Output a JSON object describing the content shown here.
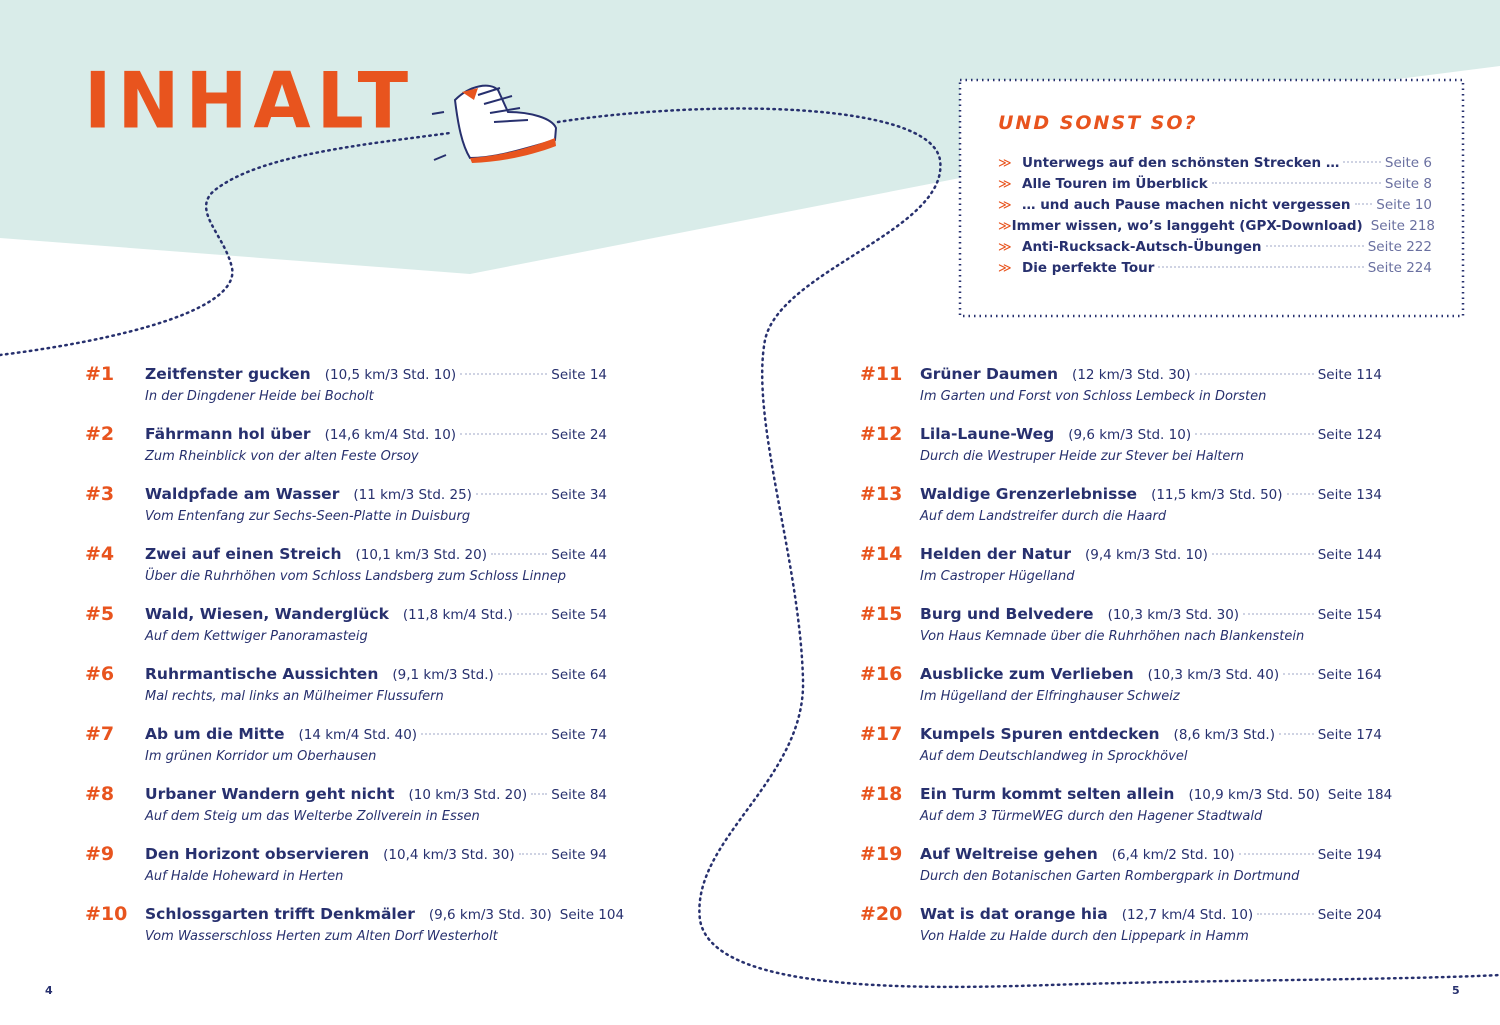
{
  "heading": "INHALT",
  "colors": {
    "accent": "#e8541e",
    "text": "#27306e",
    "background_mint": "#d9ece9"
  },
  "illustration": "hiking-boot-icon",
  "sidebox": {
    "title": "Und sonst so?",
    "items": [
      {
        "label": "Unterwegs auf den schönsten Strecken …",
        "page": "Seite 6"
      },
      {
        "label": "Alle Touren im Überblick",
        "page": "Seite 8"
      },
      {
        "label": "… und auch Pause machen nicht vergessen",
        "page": "Seite 10"
      },
      {
        "label": "Immer wissen, wo’s langgeht (GPX-Download)",
        "page": "Seite 218"
      },
      {
        "label": "Anti-Rucksack-Autsch-Übungen",
        "page": "Seite 222"
      },
      {
        "label": "Die perfekte Tour",
        "page": "Seite 224"
      }
    ]
  },
  "tours": [
    {
      "num": "#1",
      "title": "Zeitfenster gucken",
      "meta": "(10,5 km/3 Std. 10)",
      "page": "Seite 14",
      "sub": "In der Dingdener Heide bei Bocholt"
    },
    {
      "num": "#2",
      "title": "Fährmann hol über",
      "meta": "(14,6 km/4 Std. 10)",
      "page": "Seite 24",
      "sub": "Zum Rheinblick von der alten Feste Orsoy"
    },
    {
      "num": "#3",
      "title": "Waldpfade am Wasser",
      "meta": "(11 km/3 Std. 25)",
      "page": "Seite 34",
      "sub": "Vom Entenfang zur Sechs-Seen-Platte in Duisburg"
    },
    {
      "num": "#4",
      "title": "Zwei auf einen Streich",
      "meta": "(10,1 km/3 Std. 20)",
      "page": "Seite 44",
      "sub": "Über die Ruhrhöhen vom Schloss Landsberg zum Schloss Linnep"
    },
    {
      "num": "#5",
      "title": "Wald, Wiesen, Wanderglück",
      "meta": "(11,8 km/4 Std.)",
      "page": "Seite 54",
      "sub": "Auf dem Kettwiger Panoramasteig"
    },
    {
      "num": "#6",
      "title": "Ruhrmantische Aussichten",
      "meta": "(9,1 km/3 Std.)",
      "page": "Seite 64",
      "sub": "Mal rechts, mal links an Mülheimer Flussufern"
    },
    {
      "num": "#7",
      "title": "Ab um die Mitte",
      "meta": "(14 km/4 Std. 40)",
      "page": "Seite 74",
      "sub": "Im grünen Korridor um Oberhausen"
    },
    {
      "num": "#8",
      "title": "Urbaner Wandern geht nicht",
      "meta": "(10 km/3 Std. 20)",
      "page": "Seite 84",
      "sub": "Auf dem Steig um das Welterbe Zollverein in Essen"
    },
    {
      "num": "#9",
      "title": "Den Horizont observieren",
      "meta": "(10,4 km/3 Std. 30)",
      "page": "Seite 94",
      "sub": "Auf Halde Hoheward in Herten"
    },
    {
      "num": "#10",
      "title": "Schlossgarten trifft Denkmäler",
      "meta": "(9,6 km/3 Std. 30)",
      "page": "Seite 104",
      "sub": "Vom Wasserschloss Herten zum Alten Dorf Westerholt"
    },
    {
      "num": "#11",
      "title": "Grüner Daumen",
      "meta": "(12 km/3 Std. 30)",
      "page": "Seite 114",
      "sub": "Im Garten und Forst von Schloss Lembeck in Dorsten"
    },
    {
      "num": "#12",
      "title": "Lila-Laune-Weg",
      "meta": "(9,6 km/3 Std. 10)",
      "page": "Seite 124",
      "sub": "Durch die Westruper Heide zur Stever bei Haltern"
    },
    {
      "num": "#13",
      "title": "Waldige Grenzerlebnisse",
      "meta": "(11,5 km/3 Std. 50)",
      "page": "Seite 134",
      "sub": "Auf dem Landstreifer durch die Haard"
    },
    {
      "num": "#14",
      "title": "Helden der Natur",
      "meta": "(9,4 km/3 Std. 10)",
      "page": "Seite 144",
      "sub": "Im Castroper Hügelland"
    },
    {
      "num": "#15",
      "title": "Burg und Belvedere",
      "meta": "(10,3 km/3 Std. 30)",
      "page": "Seite 154",
      "sub": "Von Haus Kemnade über die Ruhrhöhen nach Blankenstein"
    },
    {
      "num": "#16",
      "title": "Ausblicke zum Verlieben",
      "meta": "(10,3 km/3 Std. 40)",
      "page": "Seite 164",
      "sub": "Im Hügelland der Elfringhauser Schweiz"
    },
    {
      "num": "#17",
      "title": "Kumpels Spuren entdecken",
      "meta": "(8,6 km/3 Std.)",
      "page": "Seite 174",
      "sub": "Auf dem Deutschlandweg in Sprockhövel"
    },
    {
      "num": "#18",
      "title": "Ein Turm kommt selten allein",
      "meta": "(10,9 km/3 Std. 50)",
      "page": "Seite 184",
      "sub": "Auf dem 3 TürmeWEG durch den Hagener Stadtwald"
    },
    {
      "num": "#19",
      "title": "Auf Weltreise gehen",
      "meta": "(6,4 km/2 Std. 10)",
      "page": "Seite 194",
      "sub": "Durch den Botanischen Garten Rombergpark in Dortmund"
    },
    {
      "num": "#20",
      "title": "Wat is dat orange hia",
      "meta": "(12,7 km/4 Std. 10)",
      "page": "Seite 204",
      "sub": "Von Halde zu Halde durch den Lippepark in Hamm"
    }
  ],
  "folios": {
    "left": "4",
    "right": "5"
  }
}
